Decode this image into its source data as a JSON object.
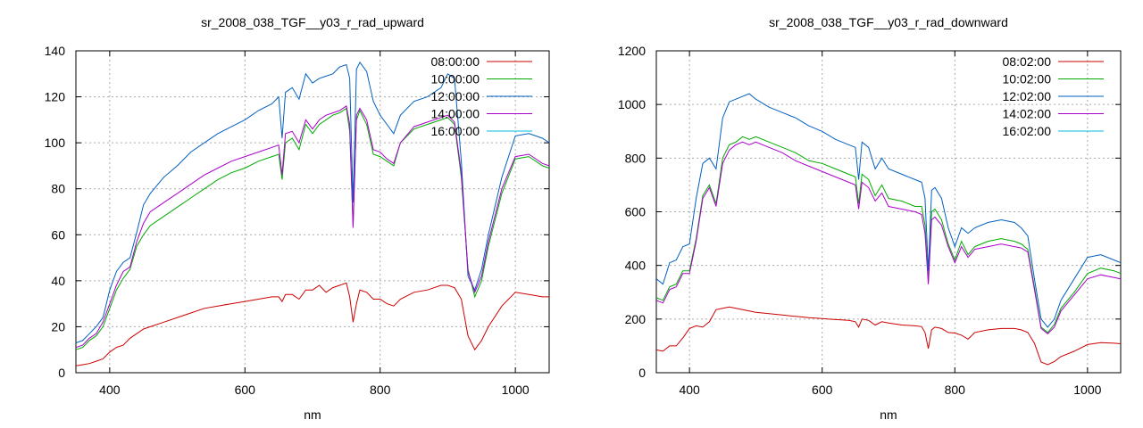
{
  "chart_data": [
    {
      "type": "line",
      "title": "sr_2008_038_TGF__y03_r_rad_upward",
      "xlabel": "nm",
      "ylabel": "",
      "xlim": [
        350,
        1050
      ],
      "ylim": [
        0,
        140
      ],
      "xticks": [
        400,
        600,
        800,
        1000
      ],
      "yticks": [
        0,
        20,
        40,
        60,
        80,
        100,
        120,
        140
      ],
      "grid": true,
      "legend": "top-right",
      "series": [
        {
          "name": "08:00:00",
          "color": "#cc0000",
          "x": [
            350,
            360,
            370,
            380,
            390,
            400,
            410,
            420,
            430,
            440,
            450,
            460,
            480,
            500,
            520,
            540,
            560,
            580,
            600,
            620,
            640,
            650,
            655,
            660,
            670,
            680,
            690,
            700,
            710,
            720,
            730,
            740,
            750,
            755,
            760,
            765,
            770,
            780,
            790,
            800,
            810,
            820,
            830,
            850,
            870,
            890,
            900,
            910,
            920,
            930,
            940,
            950,
            960,
            980,
            1000,
            1020,
            1040,
            1050
          ],
          "y": [
            3,
            3.5,
            4,
            5,
            6,
            9,
            11,
            12,
            15,
            17,
            19,
            20,
            22,
            24,
            26,
            28,
            29,
            30,
            31,
            32,
            33,
            33,
            31,
            34,
            34,
            32,
            36,
            36,
            38,
            35,
            37,
            38,
            39,
            33,
            22,
            30,
            36,
            35,
            32,
            32,
            30,
            29,
            32,
            35,
            36,
            38,
            38,
            37,
            32,
            16,
            10,
            14,
            20,
            29,
            35,
            34,
            33,
            33
          ]
        },
        {
          "name": "10:00:00",
          "color": "#00aa00",
          "x": [
            350,
            360,
            370,
            380,
            390,
            400,
            410,
            420,
            430,
            440,
            450,
            460,
            480,
            500,
            520,
            540,
            560,
            580,
            600,
            620,
            640,
            650,
            655,
            660,
            670,
            680,
            690,
            700,
            710,
            720,
            730,
            740,
            750,
            755,
            760,
            765,
            770,
            780,
            790,
            800,
            810,
            820,
            830,
            850,
            870,
            890,
            900,
            910,
            920,
            930,
            940,
            950,
            960,
            980,
            1000,
            1020,
            1040,
            1050
          ],
          "y": [
            10,
            11,
            14,
            16,
            20,
            28,
            36,
            41,
            45,
            55,
            60,
            64,
            68,
            72,
            76,
            80,
            84,
            87,
            89,
            92,
            94,
            95,
            84,
            100,
            102,
            97,
            108,
            104,
            108,
            110,
            112,
            113,
            115,
            105,
            64,
            110,
            114,
            108,
            95,
            94,
            92,
            90,
            100,
            106,
            108,
            110,
            111,
            108,
            85,
            45,
            33,
            40,
            55,
            78,
            93,
            94,
            90,
            89
          ]
        },
        {
          "name": "12:00:00",
          "color": "#0060c0",
          "x": [
            350,
            360,
            370,
            380,
            390,
            400,
            410,
            420,
            430,
            440,
            450,
            460,
            480,
            500,
            520,
            540,
            560,
            580,
            600,
            620,
            640,
            650,
            655,
            660,
            670,
            680,
            690,
            700,
            710,
            720,
            730,
            740,
            750,
            755,
            760,
            765,
            770,
            780,
            790,
            800,
            810,
            820,
            830,
            850,
            870,
            890,
            900,
            910,
            920,
            930,
            940,
            950,
            960,
            980,
            1000,
            1020,
            1040,
            1050
          ],
          "y": [
            13,
            14,
            17,
            20,
            24,
            36,
            44,
            48,
            50,
            61,
            73,
            78,
            85,
            90,
            96,
            100,
            104,
            107,
            110,
            114,
            117,
            120,
            102,
            122,
            124,
            119,
            130,
            126,
            128,
            129,
            130,
            133,
            134,
            128,
            74,
            132,
            135,
            131,
            118,
            112,
            108,
            104,
            112,
            118,
            120,
            124,
            130,
            128,
            92,
            42,
            36,
            45,
            60,
            85,
            103,
            104,
            102,
            100
          ]
        },
        {
          "name": "14:00:00",
          "color": "#aa00cc",
          "x": [
            350,
            360,
            370,
            380,
            390,
            400,
            410,
            420,
            430,
            440,
            450,
            460,
            480,
            500,
            520,
            540,
            560,
            580,
            600,
            620,
            640,
            650,
            655,
            660,
            670,
            680,
            690,
            700,
            710,
            720,
            730,
            740,
            750,
            755,
            760,
            765,
            770,
            780,
            790,
            800,
            810,
            820,
            830,
            850,
            870,
            890,
            900,
            910,
            920,
            930,
            940,
            950,
            960,
            980,
            1000,
            1020,
            1040,
            1050
          ],
          "y": [
            11,
            12,
            15,
            17,
            22,
            30,
            38,
            44,
            46,
            57,
            65,
            70,
            74,
            78,
            82,
            86,
            89,
            92,
            94,
            96,
            98,
            99,
            86,
            104,
            105,
            100,
            110,
            106,
            110,
            112,
            113,
            114,
            116,
            108,
            63,
            112,
            115,
            110,
            97,
            96,
            93,
            91,
            100,
            107,
            109,
            111,
            112,
            109,
            87,
            44,
            35,
            42,
            57,
            80,
            94,
            95,
            91,
            90
          ]
        },
        {
          "name": "16:00:00",
          "color": "#00bbdd",
          "x": [],
          "y": []
        }
      ]
    },
    {
      "type": "line",
      "title": "sr_2008_038_TGF__y03_r_rad_downward",
      "xlabel": "nm",
      "ylabel": "",
      "xlim": [
        350,
        1050
      ],
      "ylim": [
        0,
        1200
      ],
      "xticks": [
        400,
        600,
        800,
        1000
      ],
      "yticks": [
        0,
        200,
        400,
        600,
        800,
        1000,
        1200
      ],
      "grid": true,
      "legend": "top-right",
      "series": [
        {
          "name": "08:02:00",
          "color": "#cc0000",
          "x": [
            350,
            360,
            370,
            380,
            390,
            400,
            410,
            420,
            430,
            440,
            450,
            460,
            470,
            480,
            490,
            500,
            520,
            540,
            560,
            580,
            600,
            620,
            640,
            650,
            655,
            660,
            670,
            680,
            690,
            700,
            720,
            740,
            750,
            755,
            760,
            765,
            770,
            780,
            790,
            800,
            810,
            820,
            830,
            850,
            870,
            890,
            900,
            910,
            920,
            930,
            940,
            950,
            960,
            980,
            1000,
            1020,
            1040,
            1050
          ],
          "y": [
            85,
            80,
            100,
            100,
            130,
            165,
            175,
            170,
            190,
            235,
            240,
            245,
            240,
            235,
            230,
            225,
            220,
            215,
            210,
            205,
            202,
            198,
            195,
            190,
            170,
            200,
            195,
            178,
            190,
            185,
            178,
            175,
            172,
            150,
            90,
            160,
            170,
            165,
            150,
            148,
            140,
            125,
            150,
            160,
            165,
            165,
            160,
            150,
            110,
            40,
            30,
            42,
            60,
            80,
            105,
            112,
            110,
            108
          ]
        },
        {
          "name": "10:02:00",
          "color": "#00aa00",
          "x": [
            350,
            360,
            370,
            380,
            390,
            400,
            410,
            420,
            430,
            440,
            450,
            460,
            470,
            480,
            490,
            500,
            520,
            540,
            560,
            580,
            600,
            620,
            640,
            650,
            655,
            660,
            670,
            680,
            690,
            700,
            720,
            740,
            750,
            755,
            760,
            765,
            770,
            780,
            790,
            800,
            810,
            820,
            830,
            850,
            870,
            890,
            900,
            910,
            920,
            930,
            940,
            950,
            960,
            980,
            1000,
            1020,
            1040,
            1050
          ],
          "y": [
            280,
            270,
            320,
            330,
            380,
            380,
            500,
            660,
            700,
            630,
            800,
            850,
            860,
            880,
            870,
            880,
            860,
            840,
            820,
            790,
            780,
            760,
            740,
            730,
            630,
            740,
            720,
            660,
            700,
            650,
            640,
            620,
            620,
            550,
            340,
            600,
            610,
            570,
            480,
            420,
            490,
            440,
            470,
            490,
            500,
            490,
            480,
            460,
            320,
            170,
            150,
            180,
            240,
            300,
            370,
            390,
            380,
            370
          ]
        },
        {
          "name": "12:02:00",
          "color": "#0060c0",
          "x": [
            350,
            360,
            370,
            380,
            390,
            400,
            410,
            420,
            430,
            440,
            450,
            460,
            470,
            480,
            490,
            500,
            520,
            540,
            560,
            580,
            600,
            620,
            640,
            650,
            655,
            660,
            670,
            680,
            690,
            700,
            720,
            740,
            750,
            755,
            760,
            765,
            770,
            780,
            790,
            800,
            810,
            820,
            830,
            850,
            870,
            890,
            900,
            910,
            920,
            930,
            940,
            950,
            960,
            980,
            1000,
            1020,
            1040,
            1050
          ],
          "y": [
            350,
            330,
            410,
            420,
            470,
            480,
            650,
            780,
            800,
            760,
            950,
            1010,
            1020,
            1030,
            1040,
            1020,
            990,
            970,
            950,
            920,
            900,
            870,
            850,
            840,
            720,
            860,
            840,
            760,
            800,
            760,
            740,
            720,
            710,
            650,
            380,
            680,
            690,
            650,
            540,
            470,
            540,
            520,
            540,
            560,
            570,
            560,
            540,
            510,
            350,
            200,
            170,
            200,
            270,
            350,
            430,
            440,
            420,
            410
          ]
        },
        {
          "name": "14:02:00",
          "color": "#aa00cc",
          "x": [
            350,
            360,
            370,
            380,
            390,
            400,
            410,
            420,
            430,
            440,
            450,
            460,
            470,
            480,
            490,
            500,
            520,
            540,
            560,
            580,
            600,
            620,
            640,
            650,
            655,
            660,
            670,
            680,
            690,
            700,
            720,
            740,
            750,
            755,
            760,
            765,
            770,
            780,
            790,
            800,
            810,
            820,
            830,
            850,
            870,
            890,
            900,
            910,
            920,
            930,
            940,
            950,
            960,
            980,
            1000,
            1020,
            1040,
            1050
          ],
          "y": [
            270,
            260,
            310,
            320,
            370,
            370,
            490,
            650,
            690,
            620,
            780,
            830,
            850,
            860,
            850,
            860,
            840,
            820,
            790,
            770,
            750,
            730,
            710,
            700,
            610,
            710,
            690,
            640,
            670,
            620,
            610,
            600,
            590,
            520,
            330,
            570,
            580,
            550,
            470,
            410,
            470,
            430,
            460,
            470,
            480,
            470,
            465,
            450,
            310,
            165,
            145,
            170,
            230,
            290,
            350,
            365,
            355,
            350
          ]
        },
        {
          "name": "16:02:00",
          "color": "#00bbdd",
          "x": [],
          "y": []
        }
      ]
    }
  ]
}
